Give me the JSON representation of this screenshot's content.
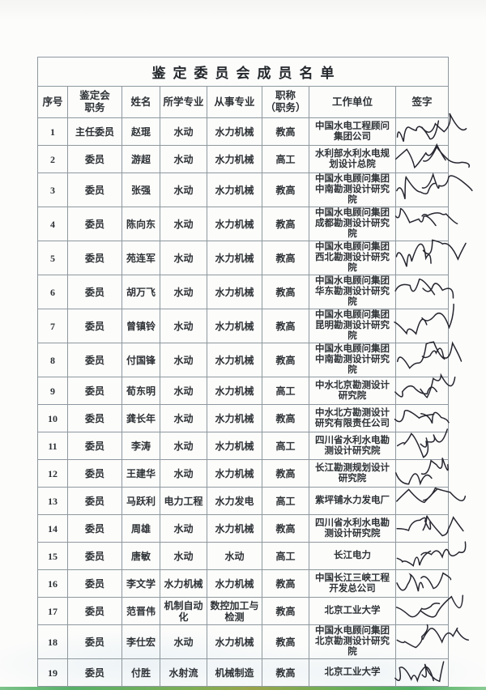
{
  "document": {
    "title": "鉴定委员会成员名单",
    "title_display": "鉴定委员会成员名单"
  },
  "table": {
    "headers": [
      "序号",
      "鉴定会\n职务",
      "姓名",
      "所学专业",
      "从事专业",
      "职称\n（职务）",
      "工作单位",
      "签字"
    ],
    "rows": [
      {
        "no": "1",
        "role": "主任委员",
        "name": "赵琨",
        "major": "水动",
        "profession": "水力机械",
        "title": "教高",
        "org": "中国水电工程顾问集团公司",
        "sig": "赵琨"
      },
      {
        "no": "2",
        "role": "委员",
        "name": "游超",
        "major": "水动",
        "profession": "水力机械",
        "title": "高工",
        "org": "水利部水利水电规划设计总院",
        "sig": "游超"
      },
      {
        "no": "3",
        "role": "委员",
        "name": "张强",
        "major": "水动",
        "profession": "水力机械",
        "title": "教高",
        "org": "中国水电顾问集团中南勘测设计研究院",
        "sig": "张强"
      },
      {
        "no": "4",
        "role": "委员",
        "name": "陈向东",
        "major": "水动",
        "profession": "水力机械",
        "title": "教高",
        "org": "中国水电顾问集团成都勘测设计研究院",
        "sig": "陈向东"
      },
      {
        "no": "5",
        "role": "委员",
        "name": "苑连军",
        "major": "水动",
        "profession": "水力机械",
        "title": "教高",
        "org": "中国水电顾问集团西北勘测设计研究院",
        "sig": "苑连军"
      },
      {
        "no": "6",
        "role": "委员",
        "name": "胡万飞",
        "major": "水动",
        "profession": "水力机械",
        "title": "教高",
        "org": "中国水电顾问集团华东勘测设计研究院",
        "sig": "胡万飞"
      },
      {
        "no": "7",
        "role": "委员",
        "name": "曾镇铃",
        "major": "水动",
        "profession": "水力机械",
        "title": "教高",
        "org": "中国水电顾问集团昆明勘测设计研究院",
        "sig": "曾镇铃"
      },
      {
        "no": "8",
        "role": "委员",
        "name": "付国锋",
        "major": "水动",
        "profession": "水力机械",
        "title": "教高",
        "org": "中国水电顾问集团中南勘测设计研究院",
        "sig": "付国锋"
      },
      {
        "no": "9",
        "role": "委员",
        "name": "荀东明",
        "major": "水动",
        "profession": "水力机械",
        "title": "高工",
        "org": "中水北京勘测设计研究院",
        "sig": "荀东明"
      },
      {
        "no": "10",
        "role": "委员",
        "name": "龚长年",
        "major": "水动",
        "profession": "水力机械",
        "title": "教高",
        "org": "中水北方勘测设计研究有限责任公司",
        "sig": "龚长年"
      },
      {
        "no": "11",
        "role": "委员",
        "name": "李涛",
        "major": "水动",
        "profession": "水力机械",
        "title": "高工",
        "org": "四川省水利水电勘测设计研究院",
        "sig": "李涛"
      },
      {
        "no": "12",
        "role": "委员",
        "name": "王建华",
        "major": "水动",
        "profession": "水力机械",
        "title": "教高",
        "org": "长江勘测规划设计研究院",
        "sig": "王建华"
      },
      {
        "no": "13",
        "role": "委员",
        "name": "马跃利",
        "major": "电力工程",
        "profession": "水力发电",
        "title": "高工",
        "org": "紫坪铺水力发电厂",
        "sig": "马跃利"
      },
      {
        "no": "14",
        "role": "委员",
        "name": "周雄",
        "major": "水动",
        "profession": "水力机械",
        "title": "教高",
        "org": "四川省水利水电勘测设计研究院",
        "sig": "周雄"
      },
      {
        "no": "15",
        "role": "委员",
        "name": "唐敏",
        "major": "水动",
        "profession": "水动",
        "title": "高工",
        "org": "长江电力",
        "sig": "唐敏"
      },
      {
        "no": "16",
        "role": "委员",
        "name": "李文学",
        "major": "水力机械",
        "profession": "水力机械",
        "title": "教高",
        "org": "中国长江三峡工程开发总公司",
        "sig": "李文学"
      },
      {
        "no": "17",
        "role": "委员",
        "name": "范晋伟",
        "major": "机制自动化",
        "profession": "数控加工与检测",
        "title": "教高",
        "org": "北京工业大学",
        "sig": "范晋伟"
      },
      {
        "no": "18",
        "role": "委员",
        "name": "李仕宏",
        "major": "水动",
        "profession": "水力机械",
        "title": "教高",
        "org": "中国水电顾问集团北京勘测设计研究院",
        "sig": "李仕宏"
      },
      {
        "no": "19",
        "role": "委员",
        "name": "付胜",
        "major": "水射流",
        "profession": "机械制造",
        "title": "教高",
        "org": "北京工业大学",
        "sig": "付胜"
      }
    ]
  },
  "colors": {
    "ink": "#2e3236",
    "table_border": "#8e989e",
    "signature_ink": "#262630",
    "scan_edge_green": "#57b068"
  }
}
